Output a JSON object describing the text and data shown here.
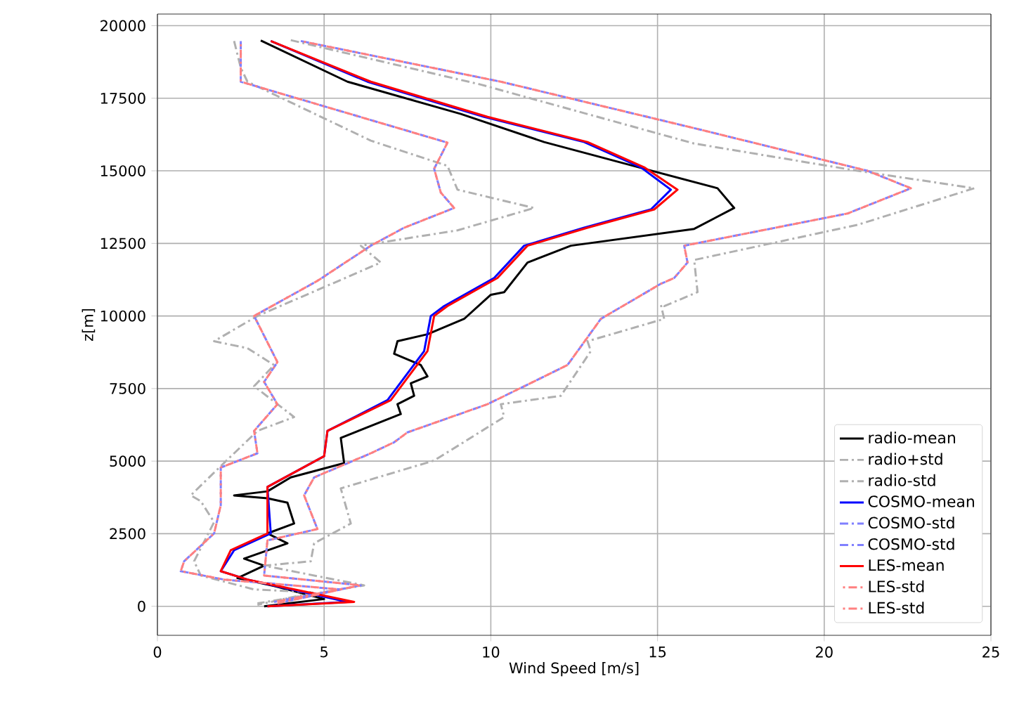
{
  "chart_data": {
    "type": "line",
    "xlabel": "Wind Speed [m/s]",
    "ylabel": "z[m]",
    "xlim": [
      0,
      25
    ],
    "ylim": [
      -1000,
      20400
    ],
    "xticks": [
      0,
      5,
      10,
      15,
      20,
      25
    ],
    "yticks": [
      0,
      2500,
      5000,
      7500,
      10000,
      12500,
      15000,
      17500,
      20000
    ],
    "grid": true,
    "legend": "bottom right",
    "marker": "none",
    "series": [
      {
        "name": "radio-mean",
        "color": "#000000",
        "line_style": "solid",
        "x": [
          3.1,
          5.7,
          9.1,
          11.6,
          14.6,
          16.8,
          17.3,
          16.1,
          12.4,
          11.1,
          10.4,
          10.0,
          9.2,
          8.1,
          7.2,
          7.1,
          7.9,
          8.1,
          7.6,
          7.7,
          7.2,
          7.3,
          5.5,
          5.6,
          4.0,
          3.3,
          2.3,
          3.3,
          3.9,
          4.1,
          3.3,
          3.9,
          2.6,
          3.2,
          2.4,
          3.5,
          5.0,
          3.2
        ],
        "values": [
          19490,
          18070,
          16960,
          15990,
          15070,
          14400,
          13720,
          13000,
          12420,
          11840,
          10820,
          10730,
          9900,
          9370,
          9130,
          8700,
          8310,
          7920,
          7680,
          7250,
          6960,
          6620,
          5800,
          4930,
          4440,
          3960,
          3820,
          3720,
          3570,
          2850,
          2510,
          2170,
          1640,
          1400,
          970,
          700,
          250,
          0
        ]
      },
      {
        "name": "radio+std",
        "color": "#b0b0b0",
        "line_style": "dashdot",
        "x": [
          4.0,
          9.7,
          16.1,
          21.0,
          24.5,
          21.0,
          16.1,
          16.2,
          15.2,
          15.1,
          15.2,
          12.9,
          13.0,
          12.1,
          10.3,
          10.4,
          8.3,
          5.5,
          5.8,
          4.7,
          4.6,
          3.2,
          6.2,
          3.0
        ],
        "values": [
          19500,
          17970,
          15940,
          15000,
          14400,
          13140,
          11930,
          10820,
          10340,
          10390,
          9900,
          9130,
          8790,
          7250,
          6960,
          6520,
          5020,
          4060,
          2850,
          2170,
          1550,
          1400,
          720,
          100
        ]
      },
      {
        "name": "radio-std",
        "color": "#b0b0b0",
        "line_style": "dashdot",
        "x": [
          2.3,
          2.5,
          2.7,
          6.4,
          8.7,
          9.0,
          11.3,
          9.0,
          6.1,
          6.7,
          3.0,
          1.7,
          2.7,
          3.5,
          2.9,
          4.1,
          3.0,
          1.9,
          1.0,
          1.3,
          1.7,
          1.1,
          1.3,
          2.9,
          4.7,
          3.0
        ],
        "values": [
          19470,
          18550,
          18070,
          16040,
          15170,
          14350,
          13720,
          12950,
          12420,
          11840,
          10000,
          9130,
          8890,
          8310,
          7580,
          6520,
          6040,
          4830,
          3820,
          3620,
          2900,
          1550,
          1060,
          580,
          480,
          50
        ]
      },
      {
        "name": "COSMO-mean",
        "color": "#0000ff",
        "line_style": "solid",
        "x": [
          3.4,
          6.3,
          9.8,
          12.8,
          14.5,
          15.4,
          14.8,
          12.8,
          11.0,
          10.1,
          8.6,
          8.2,
          8.0,
          6.9,
          5.1,
          5.0,
          3.3,
          3.4,
          2.3,
          1.9,
          2.7,
          5.7,
          3.3
        ],
        "values": [
          19470,
          18070,
          16860,
          15990,
          15120,
          14350,
          13670,
          13040,
          12420,
          11310,
          10340,
          10000,
          8790,
          7100,
          6040,
          5170,
          4110,
          2510,
          1930,
          1210,
          920,
          150,
          0
        ]
      },
      {
        "name": "COSMO-std",
        "color": "#8080ff",
        "line_style": "dashdot",
        "x": [
          4.3,
          10.3,
          16.1,
          21.3,
          22.6,
          20.7,
          17.7,
          15.8,
          15.9,
          15.5,
          15.1,
          13.3,
          12.3,
          9.9,
          7.5,
          7.1,
          6.4,
          4.7,
          4.4,
          4.8,
          3.3,
          3.2,
          6.1,
          3.5
        ],
        "values": [
          19470,
          18070,
          16470,
          15000,
          14400,
          13530,
          12850,
          12420,
          11840,
          11310,
          11110,
          9900,
          8310,
          6960,
          5990,
          5650,
          5270,
          4440,
          3820,
          2660,
          2270,
          1060,
          720,
          150
        ]
      },
      {
        "name": "COSMO-std",
        "color": "#8080ff",
        "line_style": "dashdot",
        "x": [
          2.5,
          2.5,
          8.7,
          8.3,
          8.5,
          8.9,
          7.4,
          6.4,
          4.8,
          2.9,
          3.6,
          3.2,
          3.6,
          2.9,
          3.0,
          1.9,
          1.9,
          1.7,
          0.8,
          0.7,
          2.0,
          5.5,
          3.6
        ],
        "values": [
          19470,
          18070,
          15970,
          15070,
          14250,
          13720,
          13040,
          12420,
          11210,
          10000,
          8410,
          7730,
          6960,
          6040,
          5270,
          4780,
          3480,
          2510,
          1550,
          1210,
          920,
          580,
          100
        ]
      },
      {
        "name": "LES-mean",
        "color": "#ff0000",
        "line_style": "solid",
        "x": [
          3.4,
          6.4,
          9.9,
          12.9,
          14.6,
          15.6,
          14.9,
          12.9,
          11.1,
          10.2,
          8.7,
          8.3,
          8.1,
          7.0,
          5.1,
          5.0,
          3.3,
          3.3,
          2.2,
          1.9,
          2.7,
          5.9,
          3.3
        ],
        "values": [
          19470,
          18070,
          16860,
          15990,
          15120,
          14350,
          13670,
          13040,
          12420,
          11310,
          10340,
          10000,
          8790,
          7100,
          6040,
          5170,
          4110,
          2510,
          1930,
          1210,
          920,
          150,
          0
        ]
      },
      {
        "name": "LES-std",
        "color": "#ff8080",
        "line_style": "dashdot",
        "x": [
          4.3,
          10.3,
          16.1,
          21.3,
          22.6,
          20.7,
          17.7,
          15.8,
          15.9,
          15.5,
          15.1,
          13.3,
          12.3,
          9.9,
          7.5,
          7.1,
          6.4,
          4.7,
          4.4,
          4.8,
          3.3,
          3.2,
          6.1,
          3.5
        ],
        "values": [
          19470,
          18070,
          16470,
          15000,
          14400,
          13530,
          12850,
          12420,
          11840,
          11310,
          11110,
          9900,
          8310,
          6960,
          5990,
          5650,
          5270,
          4440,
          3820,
          2660,
          2270,
          1060,
          720,
          150
        ]
      },
      {
        "name": "LES-std",
        "color": "#ff8080",
        "line_style": "dashdot",
        "x": [
          2.5,
          2.5,
          8.7,
          8.3,
          8.5,
          8.9,
          7.4,
          6.4,
          4.8,
          2.9,
          3.6,
          3.2,
          3.6,
          2.9,
          3.0,
          1.9,
          1.9,
          1.7,
          0.8,
          0.7,
          2.0,
          5.5,
          3.6
        ],
        "values": [
          19470,
          18070,
          15970,
          15070,
          14250,
          13720,
          13040,
          12420,
          11210,
          10000,
          8410,
          7730,
          6960,
          6040,
          5270,
          4780,
          3480,
          2510,
          1550,
          1210,
          920,
          580,
          100
        ]
      }
    ]
  }
}
